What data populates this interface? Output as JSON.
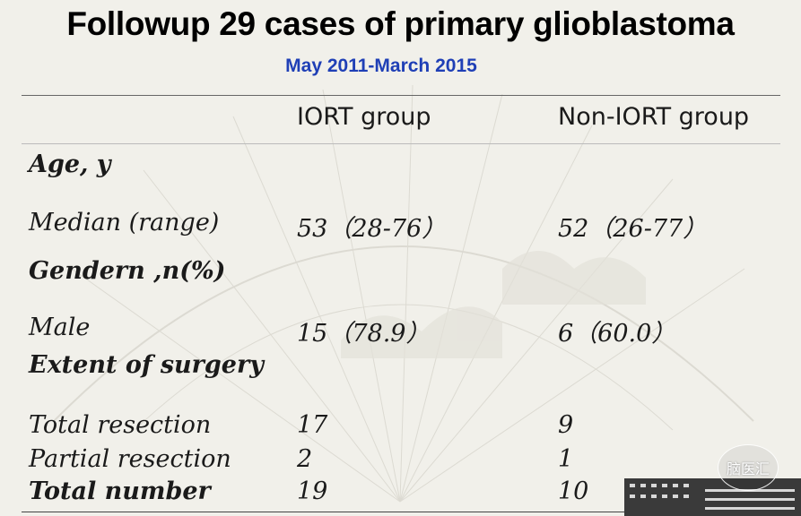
{
  "slide": {
    "title": "Followup 29 cases of primary  glioblastoma",
    "subtitle": "May 2011-March 2015",
    "logo_text": "脑医汇"
  },
  "table": {
    "headers": [
      "",
      "IORT group",
      "Non-IORT group"
    ],
    "rows": [
      {
        "label": "Age, y",
        "iort": "",
        "non_iort": "",
        "section": true
      },
      {
        "label": "Median (range)",
        "iort": "53（28-76）",
        "non_iort": "52（26-77）",
        "section": false
      },
      {
        "label": "Gendern ,n(%)",
        "iort": "",
        "non_iort": "",
        "section": true
      },
      {
        "label": "Male",
        "iort": "15（78.9）",
        "non_iort": "6（60.0）",
        "section": false
      },
      {
        "label": "Extent of surgery",
        "iort": "",
        "non_iort": "",
        "section": true
      },
      {
        "label": "Total resection",
        "iort": "17",
        "non_iort": "9",
        "section": false
      },
      {
        "label": "Partial resection",
        "iort": "2",
        "non_iort": "1",
        "section": false
      },
      {
        "label": "Total number",
        "iort": "19",
        "non_iort": "10",
        "section": true
      }
    ]
  },
  "colors": {
    "background": "#f1f0ea",
    "subtitle": "#1f3fb6",
    "rule": "#666666"
  }
}
